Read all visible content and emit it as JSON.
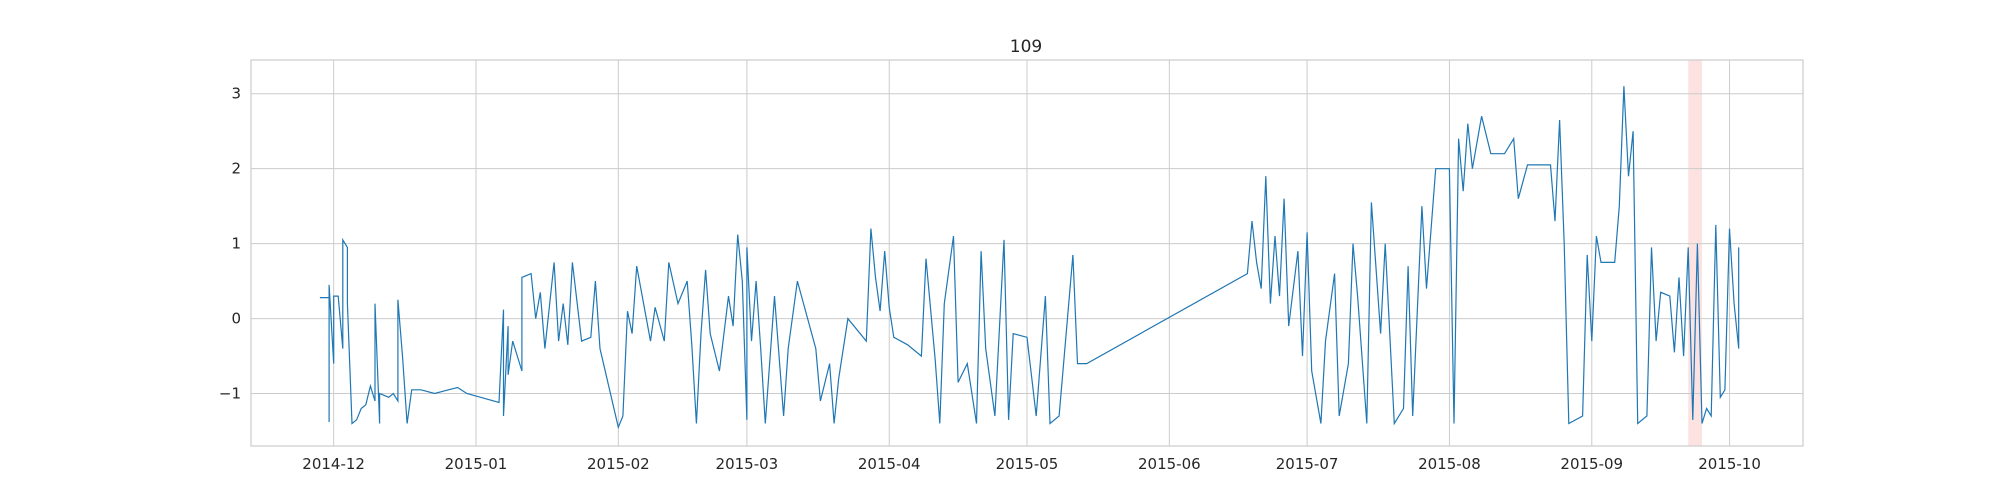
{
  "chart_data": {
    "type": "line",
    "title": "109",
    "xlabel": "",
    "ylabel": "",
    "grid": true,
    "x_axis": {
      "type": "date",
      "range": [
        "2014-11-13",
        "2015-10-17"
      ],
      "ticks": [
        {
          "date": "2014-12-01",
          "label": "2014-12"
        },
        {
          "date": "2015-01-01",
          "label": "2015-01"
        },
        {
          "date": "2015-02-01",
          "label": "2015-02"
        },
        {
          "date": "2015-03-01",
          "label": "2015-03"
        },
        {
          "date": "2015-04-01",
          "label": "2015-04"
        },
        {
          "date": "2015-05-01",
          "label": "2015-05"
        },
        {
          "date": "2015-06-01",
          "label": "2015-06"
        },
        {
          "date": "2015-07-01",
          "label": "2015-07"
        },
        {
          "date": "2015-08-01",
          "label": "2015-08"
        },
        {
          "date": "2015-09-01",
          "label": "2015-09"
        },
        {
          "date": "2015-10-01",
          "label": "2015-10"
        }
      ]
    },
    "y_axis": {
      "range": [
        -1.7,
        3.45
      ],
      "ticks": [
        {
          "value": -1,
          "label": "−1"
        },
        {
          "value": 0,
          "label": "0"
        },
        {
          "value": 1,
          "label": "1"
        },
        {
          "value": 2,
          "label": "2"
        },
        {
          "value": 3,
          "label": "3"
        }
      ]
    },
    "highlight": {
      "start": "2015-09-22",
      "end": "2015-09-25",
      "color": "#fde2e2"
    },
    "series": [
      {
        "color": "#1f77b4",
        "points": [
          [
            "2014-11-28",
            0.28
          ],
          [
            "2014-11-30",
            0.28
          ],
          [
            "2014-11-30",
            -1.38
          ],
          [
            "2014-11-30",
            0.45
          ],
          [
            "2014-12-01",
            -0.6
          ],
          [
            "2014-12-01",
            0.3
          ],
          [
            "2014-12-02",
            0.3
          ],
          [
            "2014-12-03",
            -0.4
          ],
          [
            "2014-12-03",
            1.05
          ],
          [
            "2014-12-04",
            0.95
          ],
          [
            "2014-12-04",
            0.2
          ],
          [
            "2014-12-05",
            -1.4
          ],
          [
            "2014-12-06",
            -1.35
          ],
          [
            "2014-12-07",
            -1.2
          ],
          [
            "2014-12-08",
            -1.15
          ],
          [
            "2014-12-09",
            -0.9
          ],
          [
            "2014-12-10",
            -1.1
          ],
          [
            "2014-12-10",
            0.2
          ],
          [
            "2014-12-11",
            -1.4
          ],
          [
            "2014-12-11",
            -1.0
          ],
          [
            "2014-12-13",
            -1.05
          ],
          [
            "2014-12-14",
            -1.0
          ],
          [
            "2014-12-15",
            -1.1
          ],
          [
            "2014-12-15",
            0.25
          ],
          [
            "2014-12-16",
            -0.5
          ],
          [
            "2014-12-17",
            -1.4
          ],
          [
            "2014-12-18",
            -0.95
          ],
          [
            "2014-12-20",
            -0.95
          ],
          [
            "2014-12-23",
            -1.0
          ],
          [
            "2014-12-26",
            -0.95
          ],
          [
            "2014-12-28",
            -0.92
          ],
          [
            "2014-12-30",
            -1.0
          ],
          [
            "2015-01-02",
            -1.05
          ],
          [
            "2015-01-06",
            -1.12
          ],
          [
            "2015-01-07",
            0.12
          ],
          [
            "2015-01-07",
            -1.3
          ],
          [
            "2015-01-08",
            -0.1
          ],
          [
            "2015-01-08",
            -0.75
          ],
          [
            "2015-01-09",
            -0.3
          ],
          [
            "2015-01-11",
            -0.7
          ],
          [
            "2015-01-11",
            0.55
          ],
          [
            "2015-01-13",
            0.6
          ],
          [
            "2015-01-14",
            0.0
          ],
          [
            "2015-01-15",
            0.35
          ],
          [
            "2015-01-16",
            -0.4
          ],
          [
            "2015-01-18",
            0.75
          ],
          [
            "2015-01-19",
            -0.3
          ],
          [
            "2015-01-20",
            0.2
          ],
          [
            "2015-01-21",
            -0.35
          ],
          [
            "2015-01-22",
            0.75
          ],
          [
            "2015-01-24",
            -0.3
          ],
          [
            "2015-01-26",
            -0.25
          ],
          [
            "2015-01-27",
            0.5
          ],
          [
            "2015-01-28",
            -0.4
          ],
          [
            "2015-02-01",
            -1.45
          ],
          [
            "2015-02-02",
            -1.3
          ],
          [
            "2015-02-03",
            0.1
          ],
          [
            "2015-02-04",
            -0.2
          ],
          [
            "2015-02-05",
            0.7
          ],
          [
            "2015-02-08",
            -0.3
          ],
          [
            "2015-02-09",
            0.15
          ],
          [
            "2015-02-11",
            -0.3
          ],
          [
            "2015-02-12",
            0.75
          ],
          [
            "2015-02-14",
            0.2
          ],
          [
            "2015-02-16",
            0.5
          ],
          [
            "2015-02-17",
            -0.35
          ],
          [
            "2015-02-18",
            -1.4
          ],
          [
            "2015-02-19",
            -0.2
          ],
          [
            "2015-02-20",
            0.65
          ],
          [
            "2015-02-21",
            -0.2
          ],
          [
            "2015-02-23",
            -0.7
          ],
          [
            "2015-02-25",
            0.3
          ],
          [
            "2015-02-26",
            -0.1
          ],
          [
            "2015-02-27",
            1.12
          ],
          [
            "2015-02-28",
            0.5
          ],
          [
            "2015-03-01",
            -1.35
          ],
          [
            "2015-03-01",
            0.95
          ],
          [
            "2015-03-02",
            -0.3
          ],
          [
            "2015-03-03",
            0.5
          ],
          [
            "2015-03-04",
            -0.4
          ],
          [
            "2015-03-05",
            -1.4
          ],
          [
            "2015-03-07",
            0.3
          ],
          [
            "2015-03-09",
            -1.3
          ],
          [
            "2015-03-10",
            -0.4
          ],
          [
            "2015-03-12",
            0.5
          ],
          [
            "2015-03-16",
            -0.4
          ],
          [
            "2015-03-17",
            -1.1
          ],
          [
            "2015-03-19",
            -0.6
          ],
          [
            "2015-03-20",
            -1.4
          ],
          [
            "2015-03-21",
            -0.8
          ],
          [
            "2015-03-23",
            0.0
          ],
          [
            "2015-03-27",
            -0.3
          ],
          [
            "2015-03-28",
            1.2
          ],
          [
            "2015-03-29",
            0.55
          ],
          [
            "2015-03-30",
            0.1
          ],
          [
            "2015-03-31",
            0.9
          ],
          [
            "2015-04-01",
            0.15
          ],
          [
            "2015-04-02",
            -0.25
          ],
          [
            "2015-04-05",
            -0.35
          ],
          [
            "2015-04-08",
            -0.5
          ],
          [
            "2015-04-09",
            0.8
          ],
          [
            "2015-04-11",
            -0.55
          ],
          [
            "2015-04-12",
            -1.4
          ],
          [
            "2015-04-13",
            0.2
          ],
          [
            "2015-04-15",
            1.1
          ],
          [
            "2015-04-16",
            -0.85
          ],
          [
            "2015-04-18",
            -0.6
          ],
          [
            "2015-04-20",
            -1.4
          ],
          [
            "2015-04-21",
            0.9
          ],
          [
            "2015-04-22",
            -0.4
          ],
          [
            "2015-04-24",
            -1.3
          ],
          [
            "2015-04-26",
            1.05
          ],
          [
            "2015-04-27",
            -1.35
          ],
          [
            "2015-04-28",
            -0.2
          ],
          [
            "2015-05-01",
            -0.25
          ],
          [
            "2015-05-03",
            -1.3
          ],
          [
            "2015-05-05",
            0.3
          ],
          [
            "2015-05-06",
            -1.4
          ],
          [
            "2015-05-08",
            -1.3
          ],
          [
            "2015-05-11",
            0.85
          ],
          [
            "2015-05-12",
            -0.6
          ],
          [
            "2015-05-14",
            -0.6
          ],
          [
            "2015-06-18",
            0.6
          ],
          [
            "2015-06-19",
            1.3
          ],
          [
            "2015-06-20",
            0.75
          ],
          [
            "2015-06-21",
            0.4
          ],
          [
            "2015-06-22",
            1.9
          ],
          [
            "2015-06-23",
            0.2
          ],
          [
            "2015-06-24",
            1.1
          ],
          [
            "2015-06-25",
            0.3
          ],
          [
            "2015-06-26",
            1.6
          ],
          [
            "2015-06-27",
            -0.1
          ],
          [
            "2015-06-29",
            0.9
          ],
          [
            "2015-06-30",
            -0.5
          ],
          [
            "2015-07-01",
            1.15
          ],
          [
            "2015-07-02",
            -0.7
          ],
          [
            "2015-07-04",
            -1.4
          ],
          [
            "2015-07-05",
            -0.3
          ],
          [
            "2015-07-07",
            0.6
          ],
          [
            "2015-07-08",
            -1.3
          ],
          [
            "2015-07-10",
            -0.6
          ],
          [
            "2015-07-11",
            1.0
          ],
          [
            "2015-07-12",
            0.3
          ],
          [
            "2015-07-14",
            -1.4
          ],
          [
            "2015-07-15",
            1.55
          ],
          [
            "2015-07-17",
            -0.2
          ],
          [
            "2015-07-18",
            1.0
          ],
          [
            "2015-07-20",
            -1.4
          ],
          [
            "2015-07-22",
            -1.2
          ],
          [
            "2015-07-23",
            0.7
          ],
          [
            "2015-07-24",
            -1.3
          ],
          [
            "2015-07-26",
            1.5
          ],
          [
            "2015-07-27",
            0.4
          ],
          [
            "2015-07-29",
            2.0
          ],
          [
            "2015-08-01",
            2.0
          ],
          [
            "2015-08-02",
            -1.4
          ],
          [
            "2015-08-03",
            2.4
          ],
          [
            "2015-08-04",
            1.7
          ],
          [
            "2015-08-05",
            2.6
          ],
          [
            "2015-08-06",
            2.0
          ],
          [
            "2015-08-08",
            2.7
          ],
          [
            "2015-08-10",
            2.2
          ],
          [
            "2015-08-13",
            2.2
          ],
          [
            "2015-08-15",
            2.4
          ],
          [
            "2015-08-16",
            1.6
          ],
          [
            "2015-08-18",
            2.05
          ],
          [
            "2015-08-23",
            2.05
          ],
          [
            "2015-08-24",
            1.3
          ],
          [
            "2015-08-25",
            2.65
          ],
          [
            "2015-08-26",
            1.0
          ],
          [
            "2015-08-27",
            -1.4
          ],
          [
            "2015-08-30",
            -1.3
          ],
          [
            "2015-08-31",
            0.85
          ],
          [
            "2015-09-01",
            -0.3
          ],
          [
            "2015-09-02",
            1.1
          ],
          [
            "2015-09-03",
            0.75
          ],
          [
            "2015-09-06",
            0.75
          ],
          [
            "2015-09-07",
            1.5
          ],
          [
            "2015-09-08",
            3.1
          ],
          [
            "2015-09-09",
            1.9
          ],
          [
            "2015-09-10",
            2.5
          ],
          [
            "2015-09-11",
            -1.4
          ],
          [
            "2015-09-13",
            -1.3
          ],
          [
            "2015-09-14",
            0.95
          ],
          [
            "2015-09-15",
            -0.3
          ],
          [
            "2015-09-16",
            0.35
          ],
          [
            "2015-09-18",
            0.3
          ],
          [
            "2015-09-19",
            -0.45
          ],
          [
            "2015-09-20",
            0.55
          ],
          [
            "2015-09-21",
            -0.5
          ],
          [
            "2015-09-22",
            0.95
          ],
          [
            "2015-09-23",
            -1.35
          ],
          [
            "2015-09-24",
            1.0
          ],
          [
            "2015-09-25",
            -1.4
          ],
          [
            "2015-09-26",
            -1.2
          ],
          [
            "2015-09-27",
            -1.3
          ],
          [
            "2015-09-28",
            1.25
          ],
          [
            "2015-09-29",
            -1.05
          ],
          [
            "2015-09-30",
            -0.95
          ],
          [
            "2015-10-01",
            1.2
          ],
          [
            "2015-10-02",
            0.2
          ],
          [
            "2015-10-03",
            -0.4
          ],
          [
            "2015-10-03",
            0.95
          ]
        ]
      }
    ]
  }
}
